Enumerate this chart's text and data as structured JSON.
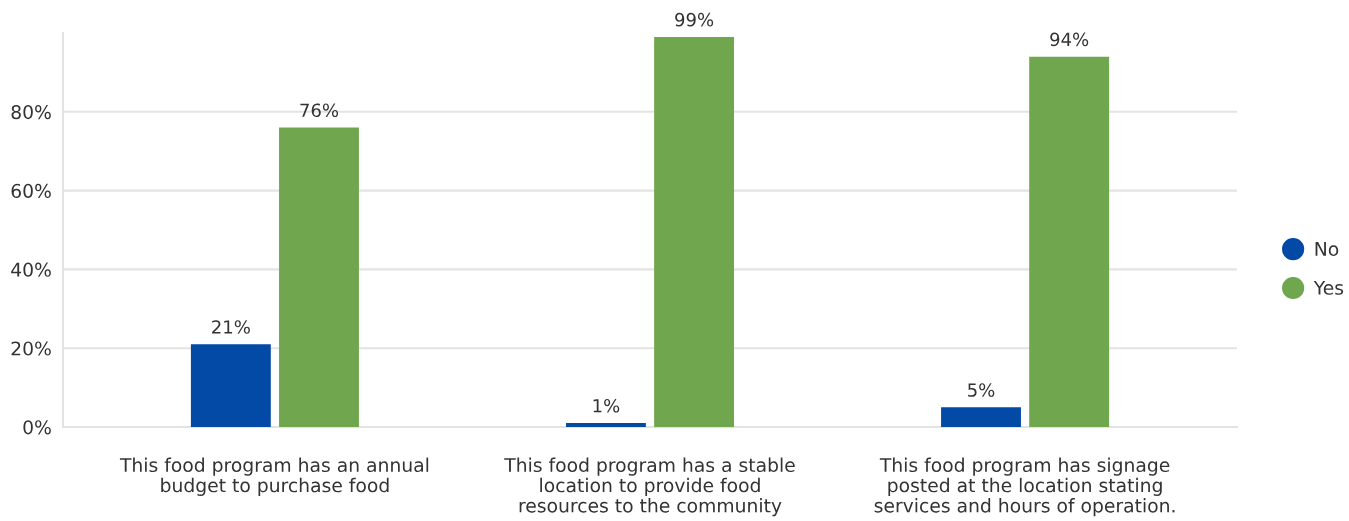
{
  "chart_data": {
    "type": "bar",
    "categories": [
      "This food program has an annual\nbudget to purchase food",
      "This food program has a stable\nlocation to provide food\nresources to the community",
      "This food program has signage\nposted at the location stating\nservices and hours of operation."
    ],
    "series": [
      {
        "name": "No",
        "color": "#0349a6",
        "values": [
          21,
          1,
          5
        ],
        "value_labels": [
          "21%",
          "1%",
          "5%"
        ]
      },
      {
        "name": "Yes",
        "color": "#70a64e",
        "values": [
          76,
          99,
          94
        ],
        "value_labels": [
          "76%",
          "99%",
          "94%"
        ]
      }
    ],
    "ylim": [
      0,
      100
    ],
    "yticks": [
      {
        "value": 0,
        "label": "0%"
      },
      {
        "value": 20,
        "label": "20%"
      },
      {
        "value": 40,
        "label": "40%"
      },
      {
        "value": 60,
        "label": "60%"
      },
      {
        "value": 80,
        "label": "80%"
      }
    ],
    "grid": "y",
    "legend": "right",
    "marker": "circle"
  }
}
